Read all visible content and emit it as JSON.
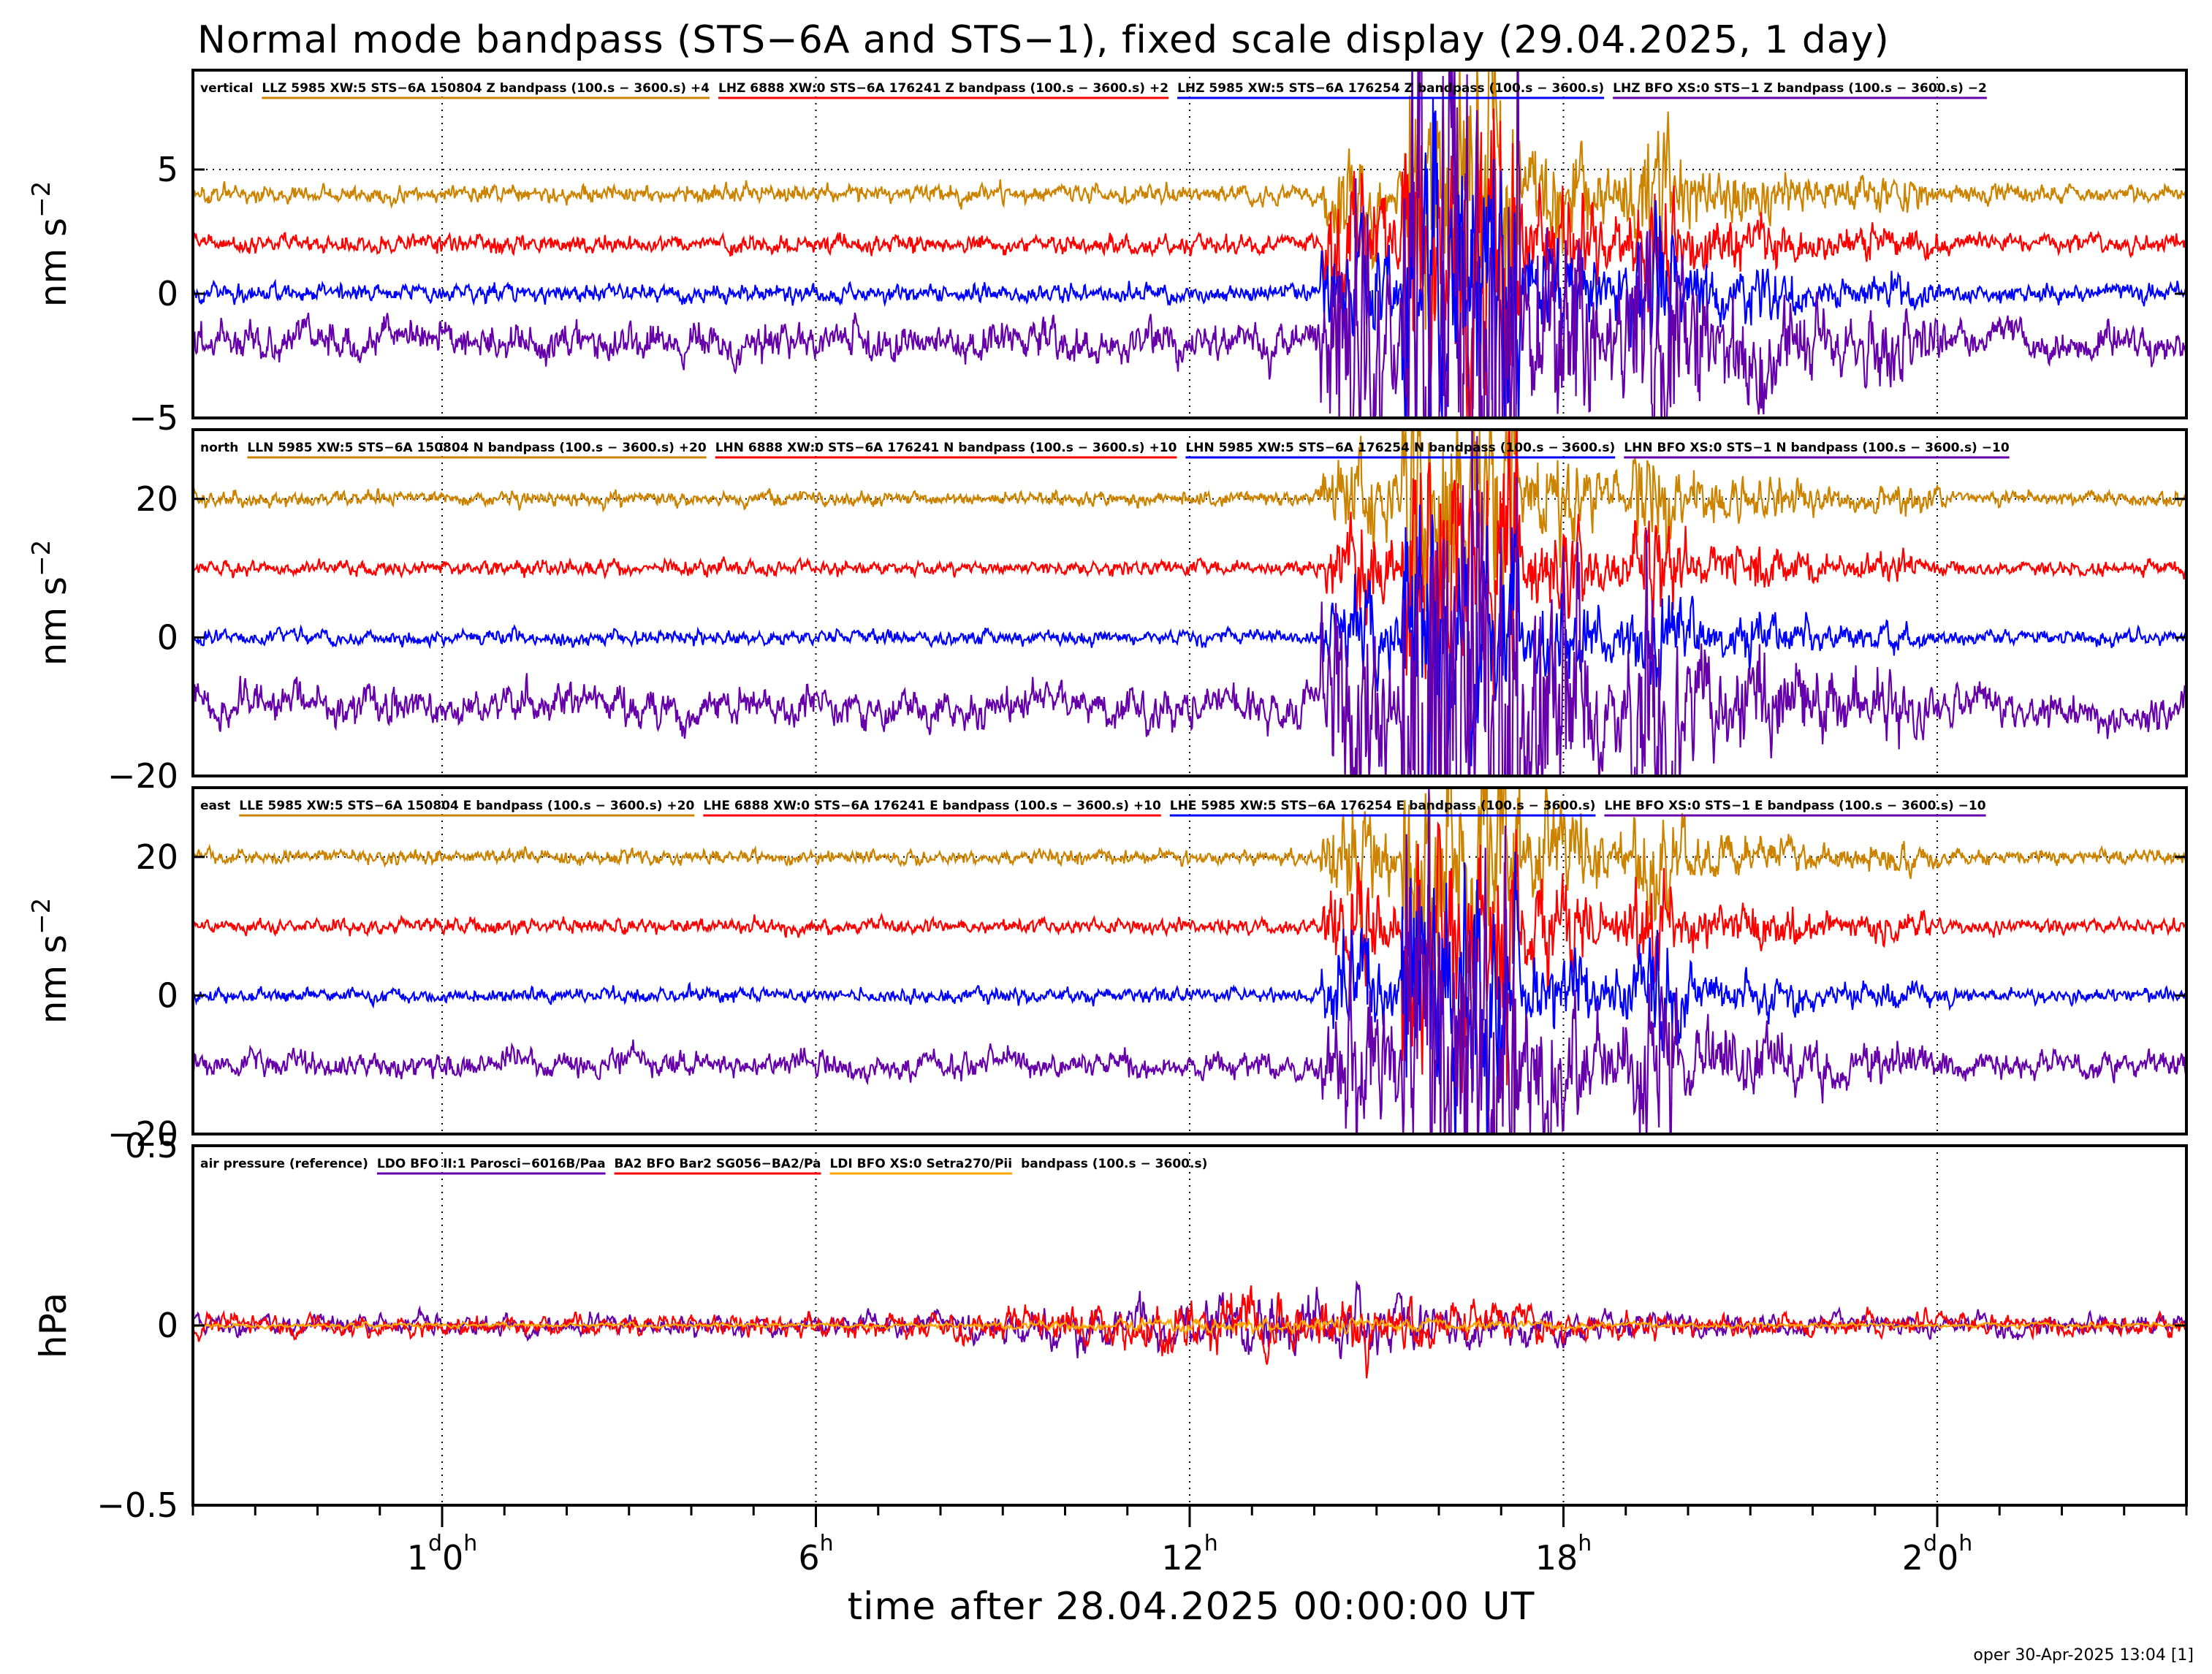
{
  "title": "Normal mode bandpass (STS−6A and STS−1), fixed scale display (29.04.2025, 1 day)",
  "xlabel": "time after 28.04.2025 00:00:00 UT",
  "footer": "oper 30-Apr-2025 13:04 [1]",
  "x_ticks": [
    {
      "hour": 24,
      "label": "1",
      "sup1": "d",
      "label2": "0",
      "sup2": "h"
    },
    {
      "hour": 30,
      "label": "6",
      "sup1": "h",
      "label2": "",
      "sup2": ""
    },
    {
      "hour": 36,
      "label": "12",
      "sup1": "h",
      "label2": "",
      "sup2": ""
    },
    {
      "hour": 42,
      "label": "18",
      "sup1": "h",
      "label2": "",
      "sup2": ""
    },
    {
      "hour": 48,
      "label": "2",
      "sup1": "d",
      "label2": "0",
      "sup2": "h"
    }
  ],
  "colors": {
    "llx": "#CC8400",
    "lhx6888": "#FF0000",
    "lhx5985": "#0000FF",
    "bfo": "#6600AA",
    "ldo": "#6600AA",
    "ba2": "#FF0000",
    "ldi": "#FFA500"
  },
  "chart_data": [
    {
      "type": "line",
      "panel": "vertical",
      "ylabel": "nm s",
      "ylabel_sup": "−2",
      "ylim": [
        -5,
        9
      ],
      "y_ticks": [
        {
          "v": 5,
          "t": "5"
        },
        {
          "v": 0,
          "t": "0"
        },
        {
          "v": -5,
          "t": "−5"
        }
      ],
      "x_range_hours": [
        20,
        52
      ],
      "grid": "dotted",
      "legend_prefix": "vertical",
      "series": [
        {
          "name": "LLZ 5985 XW:5 STS−6A 150804 Z bandpass (100.s − 3600.s) +4",
          "offset": 4,
          "color": "#CC8400",
          "noise": 0.28
        },
        {
          "name": "LHZ 6888 XW:0 STS−6A 176241 Z bandpass (100.s − 3600.s) +2",
          "offset": 2,
          "color": "#FF0000",
          "noise": 0.28
        },
        {
          "name": "LHZ 5985 XW:5 STS−6A 176254 Z bandpass (100.s − 3600.s)",
          "offset": 0,
          "color": "#0000FF",
          "noise": 0.28
        },
        {
          "name": "LHZ BFO XS:0 STS−1 Z bandpass (100.s − 3600.s) −2",
          "offset": -2,
          "color": "#6600AA",
          "noise": 0.55
        }
      ]
    },
    {
      "type": "line",
      "panel": "north",
      "ylabel": "nm s",
      "ylabel_sup": "−2",
      "ylim": [
        -20,
        30
      ],
      "y_ticks": [
        {
          "v": 20,
          "t": "20"
        },
        {
          "v": 0,
          "t": "0"
        },
        {
          "v": -20,
          "t": "−20"
        }
      ],
      "x_range_hours": [
        20,
        52
      ],
      "grid": "dotted",
      "legend_prefix": "north",
      "series": [
        {
          "name": "LLN 5985 XW:5 STS−6A 150804 N bandpass (100.s − 3600.s) +20",
          "offset": 20,
          "color": "#CC8400",
          "noise": 0.8
        },
        {
          "name": "LHN 6888 XW:0 STS−6A 176241 N bandpass (100.s − 3600.s) +10",
          "offset": 10,
          "color": "#FF0000",
          "noise": 0.8
        },
        {
          "name": "LHN 5985 XW:5 STS−6A 176254 N bandpass (100.s − 3600.s)",
          "offset": 0,
          "color": "#0000FF",
          "noise": 0.8
        },
        {
          "name": "LHN BFO XS:0 STS−1 N bandpass (100.s − 3600.s) −10",
          "offset": -10,
          "color": "#6600AA",
          "noise": 2.0
        }
      ]
    },
    {
      "type": "line",
      "panel": "east",
      "ylabel": "nm s",
      "ylabel_sup": "−2",
      "ylim": [
        -20,
        30
      ],
      "y_ticks": [
        {
          "v": 20,
          "t": "20"
        },
        {
          "v": 0,
          "t": "0"
        },
        {
          "v": -20,
          "t": "−20"
        }
      ],
      "x_range_hours": [
        20,
        52
      ],
      "grid": "dotted",
      "legend_prefix": "east",
      "series": [
        {
          "name": "LLE 5985 XW:5 STS−6A 150804 E bandpass (100.s − 3600.s) +20",
          "offset": 20,
          "color": "#CC8400",
          "noise": 0.8
        },
        {
          "name": "LHE 6888 XW:0 STS−6A 176241 E bandpass (100.s − 3600.s) +10",
          "offset": 10,
          "color": "#FF0000",
          "noise": 0.8
        },
        {
          "name": "LHE 5985 XW:5 STS−6A 176254 E bandpass (100.s − 3600.s)",
          "offset": 0,
          "color": "#0000FF",
          "noise": 0.8
        },
        {
          "name": "LHE BFO XS:0 STS−1 E bandpass (100.s − 3600.s) −10",
          "offset": -10,
          "color": "#6600AA",
          "noise": 1.3
        }
      ]
    },
    {
      "type": "line",
      "panel": "air pressure",
      "ylabel": "hPa",
      "ylabel_sup": "",
      "ylim": [
        -0.5,
        0.5
      ],
      "y_ticks": [
        {
          "v": 0.5,
          "t": "0.5"
        },
        {
          "v": 0,
          "t": "0"
        },
        {
          "v": -0.5,
          "t": "−0.5"
        }
      ],
      "x_range_hours": [
        20,
        52
      ],
      "grid": "dotted",
      "legend_prefix": "air pressure (reference)",
      "legend_suffix": "bandpass (100.s − 3600.s)",
      "series": [
        {
          "name": "LDO BFO II:1 Parosci−6016B/Paa",
          "offset": 0,
          "color": "#6600AA",
          "noise": 0.018
        },
        {
          "name": "BA2 BFO Bar2 SG056−BA2/Pa",
          "offset": 0,
          "color": "#FF0000",
          "noise": 0.018
        },
        {
          "name": "LDI BFO XS:0 Setra270/Pii",
          "offset": 0,
          "color": "#FFA500",
          "noise": 0.004
        }
      ]
    }
  ]
}
